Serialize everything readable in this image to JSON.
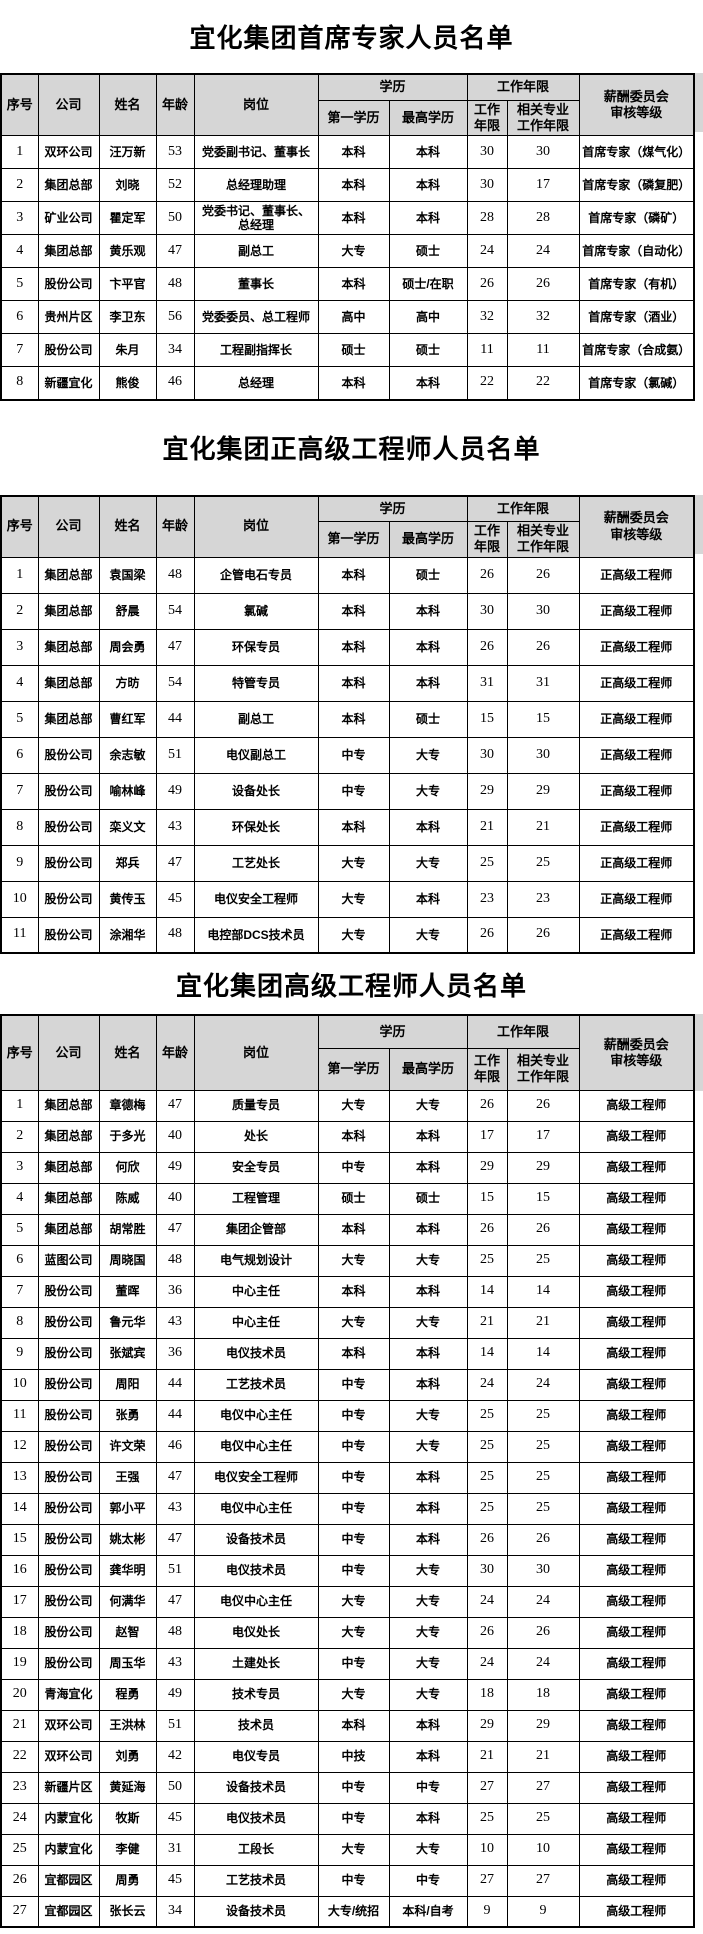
{
  "columns": {
    "no": "序号",
    "company": "公司",
    "name": "姓名",
    "age": "年龄",
    "position": "岗位",
    "education_group": "学历",
    "first_education": "第一学历",
    "highest_education": "最高学历",
    "work_years_group": "工作年限",
    "work_years": "工作\n年限",
    "related_years": "相关专业\n工作年限",
    "review_level": "薪酬委员会\n审核等级"
  },
  "tables": [
    {
      "title": "宜化集团首席专家人员名单",
      "rows": [
        [
          "1",
          "双环公司",
          "汪万新",
          "53",
          "党委副书记、董事长",
          "本科",
          "本科",
          "30",
          "30",
          "首席专家（煤气化）"
        ],
        [
          "2",
          "集团总部",
          "刘晓",
          "52",
          "总经理助理",
          "本科",
          "本科",
          "30",
          "17",
          "首席专家（磷复肥）"
        ],
        [
          "3",
          "矿业公司",
          "瞿定军",
          "50",
          "党委书记、董事长、总经理",
          "本科",
          "本科",
          "28",
          "28",
          "首席专家（磷矿）"
        ],
        [
          "4",
          "集团总部",
          "黄乐观",
          "47",
          "副总工",
          "大专",
          "硕士",
          "24",
          "24",
          "首席专家（自动化）"
        ],
        [
          "5",
          "股份公司",
          "卞平官",
          "48",
          "董事长",
          "本科",
          "硕士/在职",
          "26",
          "26",
          "首席专家（有机）"
        ],
        [
          "6",
          "贵州片区",
          "李卫东",
          "56",
          "党委委员、总工程师",
          "高中",
          "高中",
          "32",
          "32",
          "首席专家（酒业）"
        ],
        [
          "7",
          "股份公司",
          "朱月",
          "34",
          "工程副指挥长",
          "硕士",
          "硕士",
          "11",
          "11",
          "首席专家（合成氨）"
        ],
        [
          "8",
          "新疆宜化",
          "熊俊",
          "46",
          "总经理",
          "本科",
          "本科",
          "22",
          "22",
          "首席专家（氯碱）"
        ]
      ]
    },
    {
      "title": "宜化集团正高级工程师人员名单",
      "rows": [
        [
          "1",
          "集团总部",
          "袁国梁",
          "48",
          "企管电石专员",
          "本科",
          "硕士",
          "26",
          "26",
          "正高级工程师"
        ],
        [
          "2",
          "集团总部",
          "舒晨",
          "54",
          "氯碱",
          "本科",
          "本科",
          "30",
          "30",
          "正高级工程师"
        ],
        [
          "3",
          "集团总部",
          "周会勇",
          "47",
          "环保专员",
          "本科",
          "本科",
          "26",
          "26",
          "正高级工程师"
        ],
        [
          "4",
          "集团总部",
          "方昉",
          "54",
          "特管专员",
          "本科",
          "本科",
          "31",
          "31",
          "正高级工程师"
        ],
        [
          "5",
          "集团总部",
          "曹红军",
          "44",
          "副总工",
          "本科",
          "硕士",
          "15",
          "15",
          "正高级工程师"
        ],
        [
          "6",
          "股份公司",
          "余志敏",
          "51",
          "电仪副总工",
          "中专",
          "大专",
          "30",
          "30",
          "正高级工程师"
        ],
        [
          "7",
          "股份公司",
          "喻林峰",
          "49",
          "设备处长",
          "中专",
          "大专",
          "29",
          "29",
          "正高级工程师"
        ],
        [
          "8",
          "股份公司",
          "栾义文",
          "43",
          "环保处长",
          "本科",
          "本科",
          "21",
          "21",
          "正高级工程师"
        ],
        [
          "9",
          "股份公司",
          "郑兵",
          "47",
          "工艺处长",
          "大专",
          "大专",
          "25",
          "25",
          "正高级工程师"
        ],
        [
          "10",
          "股份公司",
          "黄传玉",
          "45",
          "电仪安全工程师",
          "大专",
          "本科",
          "23",
          "23",
          "正高级工程师"
        ],
        [
          "11",
          "股份公司",
          "涂湘华",
          "48",
          "电控部DCS技术员",
          "大专",
          "大专",
          "26",
          "26",
          "正高级工程师"
        ]
      ]
    },
    {
      "title": "宜化集团高级工程师人员名单",
      "rows": [
        [
          "1",
          "集团总部",
          "章德梅",
          "47",
          "质量专员",
          "大专",
          "大专",
          "26",
          "26",
          "高级工程师"
        ],
        [
          "2",
          "集团总部",
          "于多光",
          "40",
          "处长",
          "本科",
          "本科",
          "17",
          "17",
          "高级工程师"
        ],
        [
          "3",
          "集团总部",
          "何欣",
          "49",
          "安全专员",
          "中专",
          "本科",
          "29",
          "29",
          "高级工程师"
        ],
        [
          "4",
          "集团总部",
          "陈威",
          "40",
          "工程管理",
          "硕士",
          "硕士",
          "15",
          "15",
          "高级工程师"
        ],
        [
          "5",
          "集团总部",
          "胡常胜",
          "47",
          "集团企管部",
          "本科",
          "本科",
          "26",
          "26",
          "高级工程师"
        ],
        [
          "6",
          "蓝图公司",
          "周晓国",
          "48",
          "电气规划设计",
          "大专",
          "大专",
          "25",
          "25",
          "高级工程师"
        ],
        [
          "7",
          "股份公司",
          "董晖",
          "36",
          "中心主任",
          "本科",
          "本科",
          "14",
          "14",
          "高级工程师"
        ],
        [
          "8",
          "股份公司",
          "鲁元华",
          "43",
          "中心主任",
          "大专",
          "大专",
          "21",
          "21",
          "高级工程师"
        ],
        [
          "9",
          "股份公司",
          "张斌宾",
          "36",
          "电仪技术员",
          "本科",
          "本科",
          "14",
          "14",
          "高级工程师"
        ],
        [
          "10",
          "股份公司",
          "周阳",
          "44",
          "工艺技术员",
          "中专",
          "本科",
          "24",
          "24",
          "高级工程师"
        ],
        [
          "11",
          "股份公司",
          "张勇",
          "44",
          "电仪中心主任",
          "中专",
          "大专",
          "25",
          "25",
          "高级工程师"
        ],
        [
          "12",
          "股份公司",
          "许文荣",
          "46",
          "电仪中心主任",
          "中专",
          "大专",
          "25",
          "25",
          "高级工程师"
        ],
        [
          "13",
          "股份公司",
          "王强",
          "47",
          "电仪安全工程师",
          "中专",
          "本科",
          "25",
          "25",
          "高级工程师"
        ],
        [
          "14",
          "股份公司",
          "郭小平",
          "43",
          "电仪中心主任",
          "中专",
          "本科",
          "25",
          "25",
          "高级工程师"
        ],
        [
          "15",
          "股份公司",
          "姚太彬",
          "47",
          "设备技术员",
          "中专",
          "本科",
          "26",
          "26",
          "高级工程师"
        ],
        [
          "16",
          "股份公司",
          "龚华明",
          "51",
          "电仪技术员",
          "中专",
          "大专",
          "30",
          "30",
          "高级工程师"
        ],
        [
          "17",
          "股份公司",
          "何满华",
          "47",
          "电仪中心主任",
          "大专",
          "大专",
          "24",
          "24",
          "高级工程师"
        ],
        [
          "18",
          "股份公司",
          "赵智",
          "48",
          "电仪处长",
          "大专",
          "大专",
          "26",
          "26",
          "高级工程师"
        ],
        [
          "19",
          "股份公司",
          "周玉华",
          "43",
          "土建处长",
          "中专",
          "大专",
          "24",
          "24",
          "高级工程师"
        ],
        [
          "20",
          "青海宜化",
          "程勇",
          "49",
          "技术专员",
          "大专",
          "大专",
          "18",
          "18",
          "高级工程师"
        ],
        [
          "21",
          "双环公司",
          "王洪林",
          "51",
          "技术员",
          "本科",
          "本科",
          "29",
          "29",
          "高级工程师"
        ],
        [
          "22",
          "双环公司",
          "刘勇",
          "42",
          "电仪专员",
          "中技",
          "本科",
          "21",
          "21",
          "高级工程师"
        ],
        [
          "23",
          "新疆片区",
          "黄延海",
          "50",
          "设备技术员",
          "中专",
          "中专",
          "27",
          "27",
          "高级工程师"
        ],
        [
          "24",
          "内蒙宜化",
          "牧斯",
          "45",
          "电仪技术员",
          "中专",
          "本科",
          "25",
          "25",
          "高级工程师"
        ],
        [
          "25",
          "内蒙宜化",
          "李健",
          "31",
          "工段长",
          "大专",
          "大专",
          "10",
          "10",
          "高级工程师"
        ],
        [
          "26",
          "宜都园区",
          "周勇",
          "45",
          "工艺技术员",
          "中专",
          "中专",
          "27",
          "27",
          "高级工程师"
        ],
        [
          "27",
          "宜都园区",
          "张长云",
          "34",
          "设备技术员",
          "大专/统招",
          "本科/自考",
          "9",
          "9",
          "高级工程师"
        ]
      ]
    }
  ]
}
